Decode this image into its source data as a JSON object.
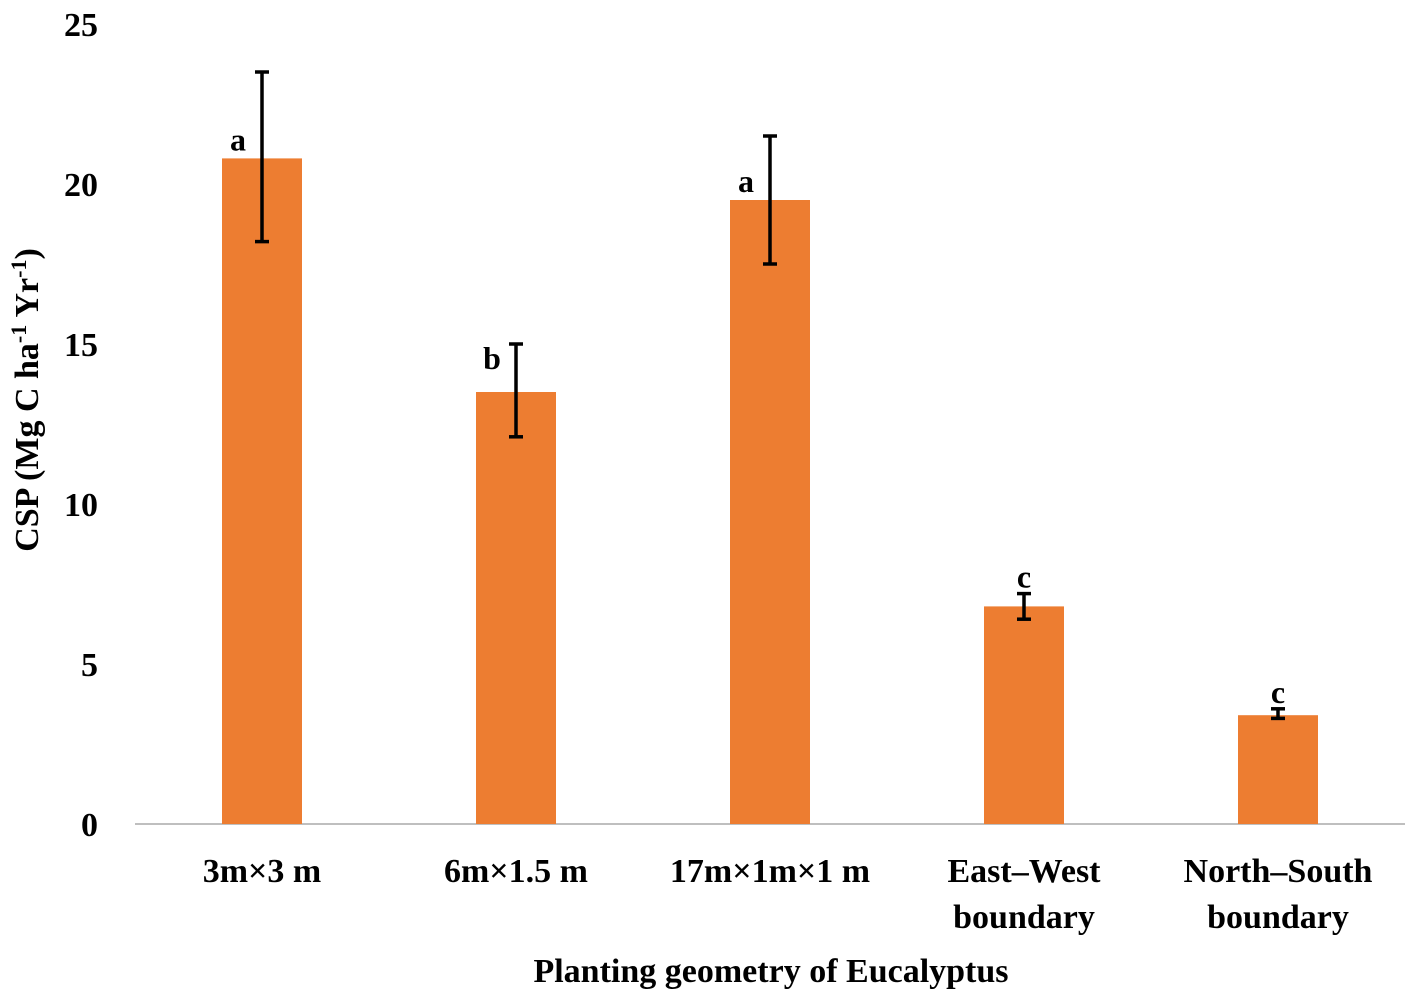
{
  "chart_data": {
    "type": "bar",
    "title": "",
    "xlabel": "Planting geometry of Eucalyptus",
    "ylabel": {
      "main": "CSP (Mg C ha",
      "sup1": "-1",
      "mid": " Yr",
      "sup2": "-1",
      "end": ")"
    },
    "ylim": [
      0,
      25
    ],
    "yticks": [
      "0",
      "5",
      "10",
      "15",
      "20",
      "25"
    ],
    "bar_color": "#ED7D31",
    "grid": false,
    "categories": [
      {
        "lines": [
          "3m×3 m"
        ]
      },
      {
        "lines": [
          "6m×1.5 m"
        ]
      },
      {
        "lines": [
          "17m×1m×1 m"
        ]
      },
      {
        "lines": [
          "East–West",
          "boundary"
        ]
      },
      {
        "lines": [
          "North–South",
          "boundary"
        ]
      }
    ],
    "values": [
      20.8,
      13.5,
      19.5,
      6.8,
      3.4
    ],
    "error_low": [
      18.2,
      12.1,
      17.5,
      6.4,
      3.3
    ],
    "error_high": [
      23.5,
      15.0,
      21.5,
      7.2,
      3.6
    ],
    "letters": [
      "a",
      "b",
      "a",
      "c",
      "c"
    ]
  }
}
